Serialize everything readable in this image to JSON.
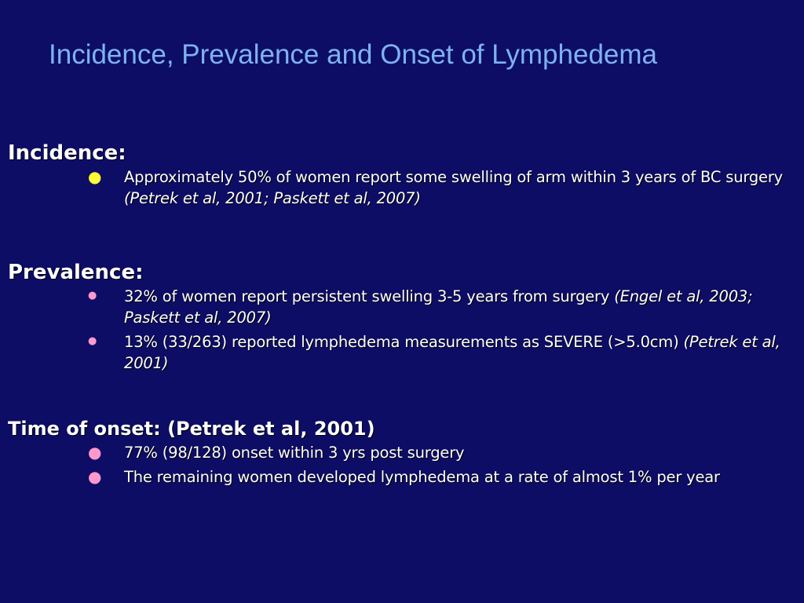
{
  "title": "Incidence, Prevalence and Onset of Lymphedema",
  "colors": {
    "background": "#0d0d66",
    "title": "#7fb2f0",
    "text": "#ffffff",
    "bullet_incidence": "#ffff33",
    "bullet_prevalence": "#ff99cc",
    "bullet_onset": "#ff99cc"
  },
  "sections": {
    "incidence": {
      "heading": "Incidence:",
      "items": [
        {
          "text": "Approximately 50% of women report some swelling of arm within 3 years of BC surgery ",
          "cite": "(Petrek et al, 2001; Paskett et al, 2007)"
        }
      ]
    },
    "prevalence": {
      "heading": "Prevalence:",
      "items": [
        {
          "text": "32% of women report persistent swelling 3-5 years from surgery ",
          "cite": "(Engel et al, 2003; Paskett et al, 2007)"
        },
        {
          "text": "13% (33/263) reported lymphedema measurements as SEVERE (>5.0cm) ",
          "cite": "(Petrek et al, 2001)"
        }
      ]
    },
    "onset": {
      "heading": "Time of onset: (Petrek et al, 2001)",
      "items": [
        {
          "text": "77% (98/128) onset within 3 yrs post surgery"
        },
        {
          "text": "The remaining women developed lymphedema at a rate of almost 1% per year"
        }
      ]
    }
  }
}
